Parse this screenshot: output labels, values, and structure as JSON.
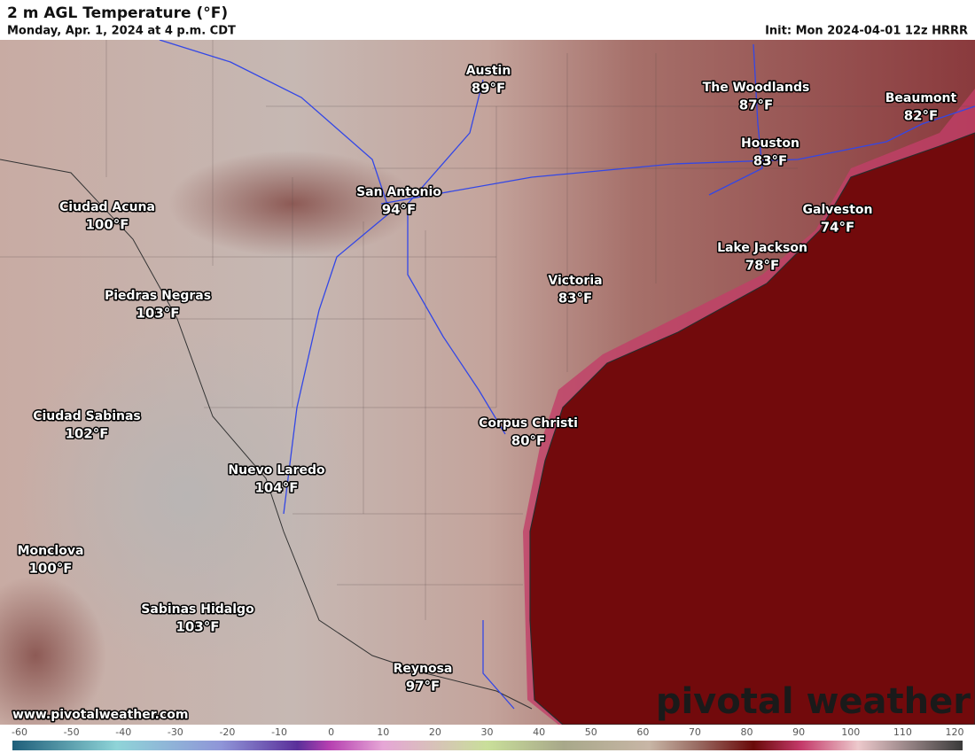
{
  "header": {
    "title": "2 m AGL Temperature (°F)",
    "subtitle": "Monday, Apr. 1, 2024 at 4 p.m. CDT",
    "init": "Init: Mon 2024-04-01 12z HRRR"
  },
  "cities": [
    {
      "name": "Austin",
      "temp": "89°F"
    },
    {
      "name": "The Woodlands",
      "temp": "87°F"
    },
    {
      "name": "Beaumont",
      "temp": "82°F"
    },
    {
      "name": "Houston",
      "temp": "83°F"
    },
    {
      "name": "San Antonio",
      "temp": "94°F"
    },
    {
      "name": "Galveston",
      "temp": "74°F"
    },
    {
      "name": "Ciudad Acuna",
      "temp": "100°F"
    },
    {
      "name": "Lake Jackson",
      "temp": "78°F"
    },
    {
      "name": "Victoria",
      "temp": "83°F"
    },
    {
      "name": "Piedras Negras",
      "temp": "103°F"
    },
    {
      "name": "Ciudad Sabinas",
      "temp": "102°F"
    },
    {
      "name": "Corpus Christi",
      "temp": "80°F"
    },
    {
      "name": "Nuevo Laredo",
      "temp": "104°F"
    },
    {
      "name": "Monclova",
      "temp": "100°F"
    },
    {
      "name": "Sabinas Hidalgo",
      "temp": "103°F"
    },
    {
      "name": "Reynosa",
      "temp": "97°F"
    }
  ],
  "footer": {
    "website": "www.pivotalweather.com",
    "logo": "pivotal weather"
  },
  "colorbar": {
    "ticks": [
      -60,
      -50,
      -40,
      -30,
      -20,
      -10,
      0,
      10,
      20,
      30,
      40,
      50,
      60,
      70,
      80,
      90,
      100,
      110,
      120
    ]
  }
}
